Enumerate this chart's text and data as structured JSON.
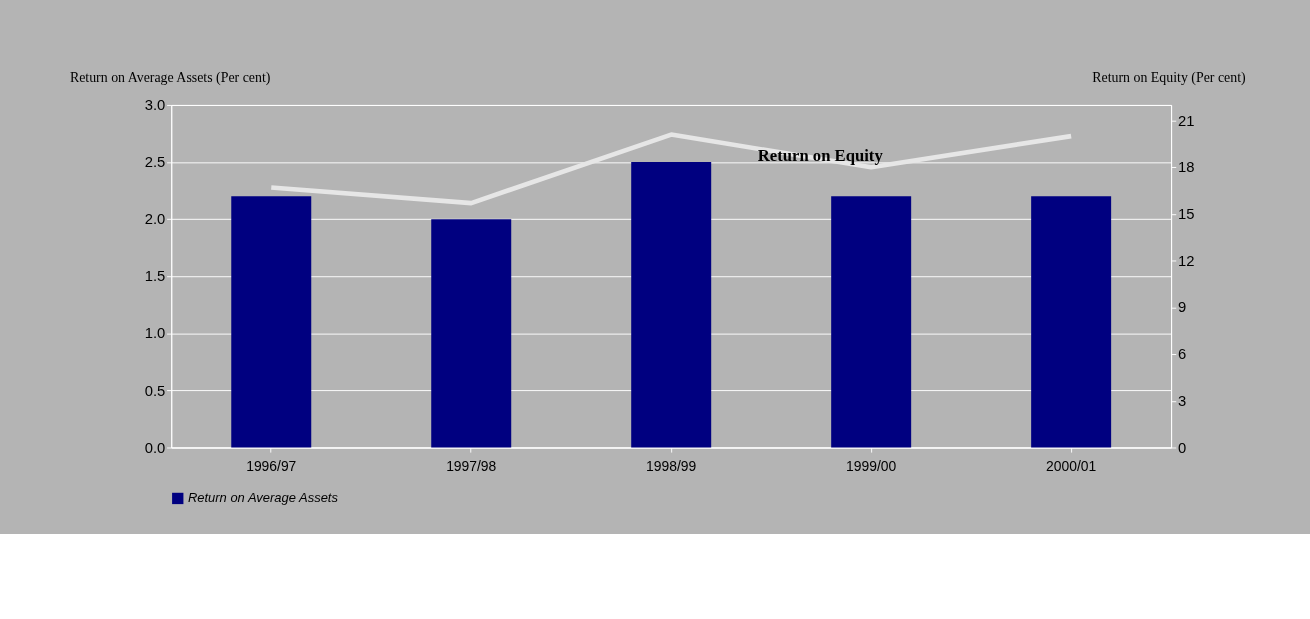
{
  "chart_data": {
    "type": "bar",
    "categories": [
      "1996/97",
      "1997/98",
      "1998/99",
      "1999/00",
      "2000/01"
    ],
    "ylabel": "Return on Average Assets (Per cent)",
    "y2label": "Return on Equity (Per cent)",
    "series": [
      {
        "name": "Return on Average Assets",
        "color": "#000080",
        "values": [
          2.2,
          2.0,
          2.5,
          2.2,
          2.2
        ]
      },
      {
        "name": "Return on Equity",
        "type": "line",
        "axis": "y2",
        "color": "#e6e6e6",
        "values": [
          16.7,
          15.7,
          20.1,
          18.0,
          20.0
        ]
      }
    ],
    "ylim": [
      0,
      3
    ],
    "yticks": [
      {
        "value": 0,
        "label": "0.0"
      },
      0.5,
      {
        "value": 1,
        "label": "1.0"
      },
      1.5,
      {
        "value": 2,
        "label": "2.0"
      },
      2.5,
      {
        "value": 3,
        "label": "3.0"
      }
    ],
    "y2lim": [
      0,
      22
    ],
    "y2ticks": [
      0,
      3,
      6,
      9,
      12,
      15,
      18,
      21
    ],
    "grid": "y",
    "legend": "bottom",
    "marker": "none",
    "line_style": "solid"
  }
}
